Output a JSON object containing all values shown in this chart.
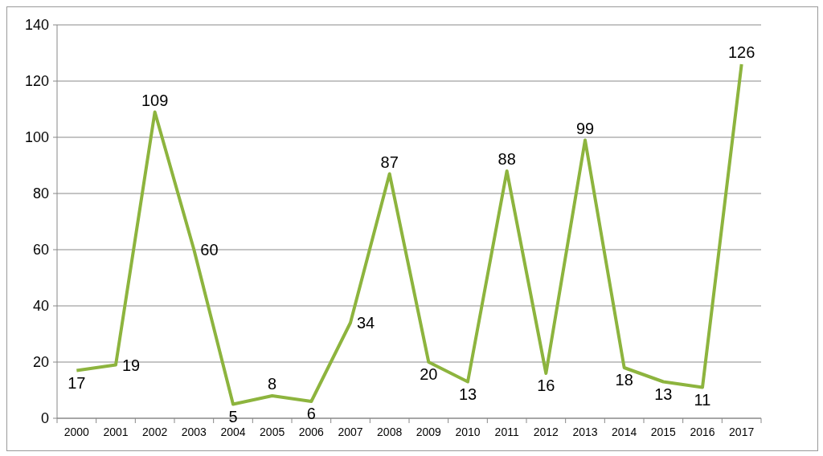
{
  "chart_data": {
    "type": "line",
    "categories": [
      "2000",
      "2001",
      "2002",
      "2003",
      "2004",
      "2005",
      "2006",
      "2007",
      "2008",
      "2009",
      "2010",
      "2011",
      "2012",
      "2013",
      "2014",
      "2015",
      "2016",
      "2017"
    ],
    "series": [
      {
        "color": "#8db43e",
        "values": [
          17,
          19,
          109,
          60,
          5,
          8,
          6,
          34,
          87,
          20,
          13,
          88,
          16,
          99,
          18,
          13,
          11,
          126
        ]
      }
    ],
    "ylim": [
      0,
      140
    ],
    "yticks": [
      0,
      20,
      40,
      60,
      80,
      100,
      120,
      140
    ],
    "grid": "y",
    "data_labels": true,
    "marker": "none",
    "line_style": "solid"
  }
}
